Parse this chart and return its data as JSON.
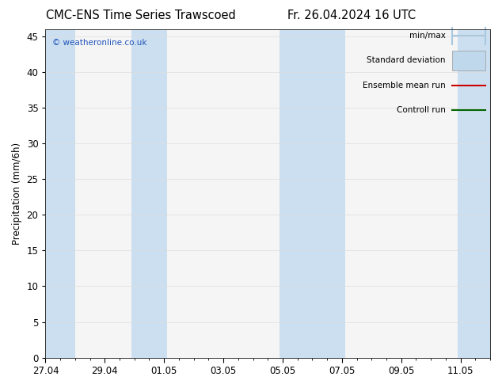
{
  "title_left": "CMC-ENS Time Series Trawscoed",
  "title_right": "Fr. 26.04.2024 16 UTC",
  "ylabel": "Precipitation (mm/6h)",
  "watermark": "© weatheronline.co.uk",
  "ylim": [
    0,
    46
  ],
  "yticks": [
    0,
    5,
    10,
    15,
    20,
    25,
    30,
    35,
    40,
    45
  ],
  "xtick_labels": [
    "27.04",
    "29.04",
    "01.05",
    "03.05",
    "05.05",
    "07.05",
    "09.05",
    "11.05"
  ],
  "xtick_positions": [
    0,
    2,
    4,
    6,
    8,
    10,
    12,
    14
  ],
  "shade_bands": [
    [
      -0.1,
      1.0
    ],
    [
      2.9,
      4.1
    ],
    [
      7.9,
      10.1
    ],
    [
      13.9,
      15.1
    ]
  ],
  "shade_color": "#ccdff0",
  "bg_color": "#ffffff",
  "plot_bg_color": "#f5f5f5",
  "legend_items": [
    {
      "label": "min/max",
      "color": "#a8c8e0",
      "type": "hbar"
    },
    {
      "label": "Standard deviation",
      "color": "#c0d8ec",
      "type": "box"
    },
    {
      "label": "Ensemble mean run",
      "color": "#cc0000",
      "type": "line"
    },
    {
      "label": "Controll run",
      "color": "#006400",
      "type": "line"
    }
  ],
  "title_fontsize": 10.5,
  "tick_fontsize": 8.5,
  "ylabel_fontsize": 8.5,
  "watermark_color": "#2255bb",
  "grid_color": "#dddddd",
  "total_days": 15
}
